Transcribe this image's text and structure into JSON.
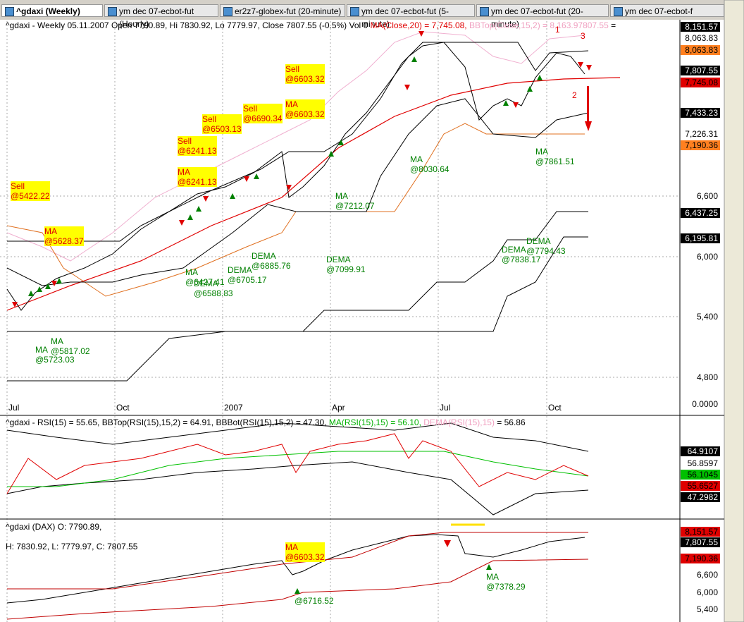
{
  "tabs": [
    "^gdaxi (Weekly)",
    "ym   dec 07-ecbot-fut (Hourly)",
    "er2z7-globex-fut (20-minute)",
    "ym   dec 07-ecbot-fut (5-minute)",
    "ym   dec 07-ecbot-fut (20-minute)",
    "ym   dec 07-ecbot-f"
  ],
  "main": {
    "header": [
      {
        "text": "^gdaxi - Weekly 05.11.2007 Open 7790.89, Hi 7830.92, Lo 7779.97, Close 7807.55 (-0.5%) Vol 0 ",
        "color": "#000000"
      },
      {
        "text": "MA(Close,20) = 7,745.08, ",
        "color": "#e00000"
      },
      {
        "text": "BBTop(Close,15,2) = 8,163.9",
        "color": "#f0a0c0"
      },
      {
        "text": "7807.55",
        "color": "#f0a0c0"
      },
      {
        "text": " =",
        "color": "#000000"
      }
    ],
    "axis_labels": [
      "8,151.57",
      "8,063.83",
      "8,063.83",
      "7,807.55",
      "7,745.08",
      "7,433.23",
      "7,226.31",
      "7,190.36",
      "6,600",
      "6,437.25",
      "6,195.81",
      "6,000",
      "5,400",
      "4,800",
      "0.0000"
    ],
    "x_labels": [
      "Jul",
      "Oct",
      "2007",
      "Apr",
      "Jul",
      "Oct"
    ],
    "annotations": [
      [
        "Sell",
        "@5422.22"
      ],
      [
        "MA",
        "@5628.37"
      ],
      [
        "Sell",
        "@6241.13"
      ],
      [
        "MA",
        "@6241.13"
      ],
      [
        "Sell",
        "@6503.13"
      ],
      [
        "Sell",
        "@6690.34"
      ],
      [
        "Sell",
        "@6603.32"
      ],
      [
        "MA",
        "@6603.32"
      ],
      [
        "MA",
        "@5817.02"
      ],
      [
        "MA",
        "@5723.03"
      ],
      [
        "MA",
        "@6427.41"
      ],
      [
        "DEMA",
        "@6588.83"
      ],
      [
        "DEMA",
        "@6705.17"
      ],
      [
        "DEMA",
        "@6885.76"
      ],
      [
        "DEMA",
        "@7099.91"
      ],
      [
        "MA",
        "@7212.07"
      ],
      [
        "MA",
        "@8030.64"
      ],
      [
        "MA",
        "@7861.51"
      ],
      [
        "DEMA",
        "@7838.17"
      ],
      [
        "DEMA",
        "@7794.43"
      ]
    ],
    "wave_labels": [
      "1",
      "2",
      "3"
    ]
  },
  "rsi": {
    "header": [
      {
        "text": "^gdaxi - RSI(15) = 55.65, BBTop(RSI(15),15,2) = 64.91, BBBot(RSI(15),15,2) = 47.30, ",
        "color": "#000000"
      },
      {
        "text": "MA(RSI(15),15) = 56.10, ",
        "color": "#00b000"
      },
      {
        "text": "DEMA(RSI(15),15)",
        "color": "#f0a0c0"
      },
      {
        "text": " = 56.86",
        "color": "#000000"
      }
    ],
    "axis_labels": [
      "64.9107",
      "56.8597",
      "56.1045",
      "55.6527",
      "47.2982"
    ]
  },
  "dax": {
    "header": [
      "^gdaxi (DAX) O: 7790.89,",
      "H: 7830.92, L: 7779.97, C: 7807.55"
    ],
    "axis_labels": [
      "8,151.57",
      "7,807.55",
      "7,190.36",
      "6,600",
      "6,000",
      "5,400"
    ],
    "annotations": [
      [
        "MA",
        "@6603.32"
      ],
      [
        "@6716.52"
      ],
      [
        "MA",
        "@7378.29"
      ]
    ]
  }
}
